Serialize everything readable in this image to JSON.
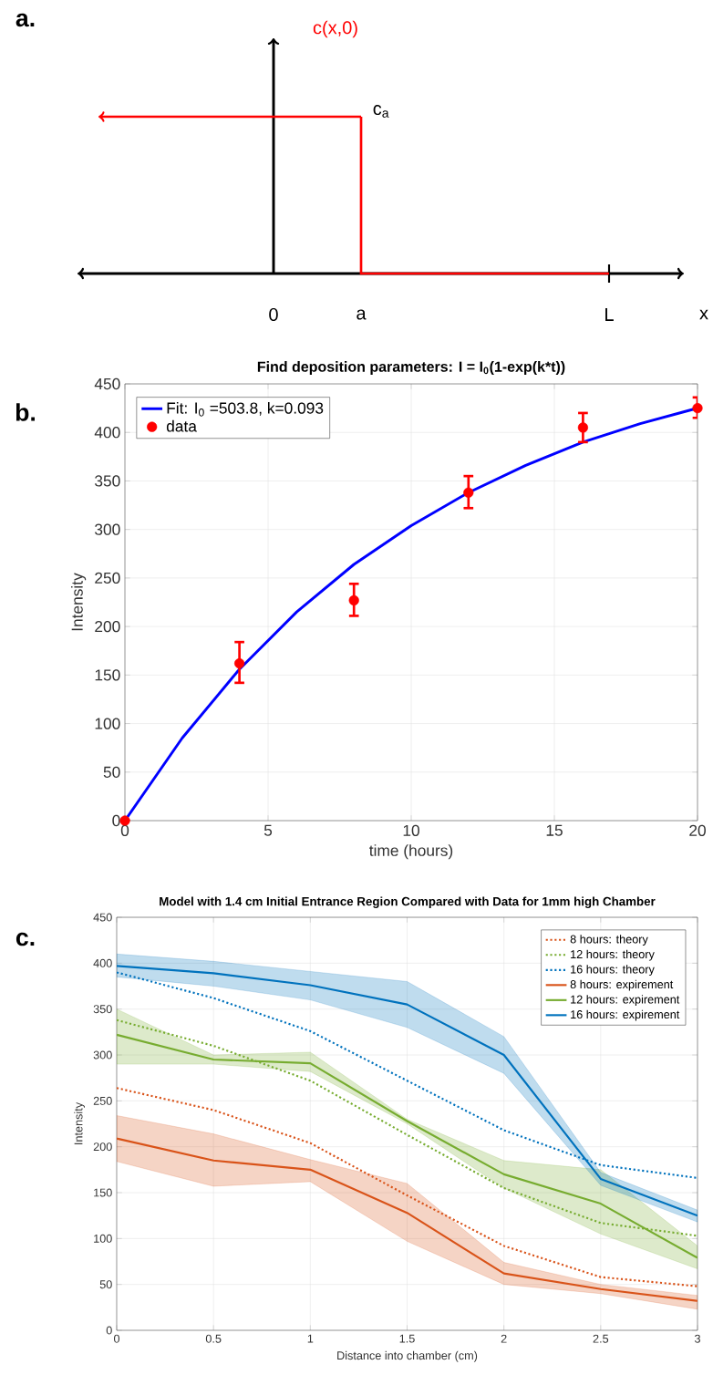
{
  "chart_data": [
    {
      "type": "other",
      "title": "c(x,0)",
      "annotations": [
        "a.",
        "c$_{a}$",
        "0",
        "a",
        "L",
        "x"
      ]
    },
    {
      "type": "scatter",
      "title": "Find deposition parameters: I = I$_{0}$(1-exp(k*t))",
      "xlabel": "time (hours)",
      "ylabel": "Intensity",
      "annotations": [
        "b."
      ],
      "xlim": [
        0,
        20
      ],
      "ylim": [
        0,
        450
      ],
      "xticks": [
        0,
        5,
        10,
        15,
        20
      ],
      "yticks": [
        0,
        50,
        100,
        150,
        200,
        250,
        300,
        350,
        400,
        450
      ],
      "grid": true,
      "legend": "top left",
      "series": [
        {
          "name": "Fit: I$_{0}$ =503.8, k=0.093",
          "type": "line",
          "color": "#0000ff",
          "marker": "none",
          "line_style": "solid",
          "x": [
            0,
            2,
            4,
            6,
            8,
            10,
            12,
            14,
            16,
            18,
            20
          ],
          "values": [
            0,
            85,
            156,
            215,
            264,
            304,
            338,
            366,
            390,
            409,
            425
          ]
        },
        {
          "name": "data",
          "type": "scatter",
          "color": "#ff0000",
          "marker": "circle",
          "x": [
            0,
            4,
            8,
            12,
            16,
            20
          ],
          "values": [
            0,
            162,
            227,
            338,
            405,
            425
          ],
          "errors": [
            null,
            [
              142,
              184
            ],
            [
              211,
              244
            ],
            [
              322,
              355
            ],
            [
              390,
              420
            ],
            [
              415,
              436
            ]
          ]
        }
      ]
    },
    {
      "type": "line",
      "title": "Model with 1.4 cm Initial Entrance Region Compared with Data for 1mm high Chamber",
      "xlabel": "Distance into chamber (cm)",
      "ylabel": "Intensity",
      "annotations": [
        "c."
      ],
      "x": [
        0,
        0.5,
        1,
        1.5,
        2,
        2.5,
        3
      ],
      "xlim": [
        0,
        3
      ],
      "ylim": [
        0,
        450
      ],
      "xticks": [
        0,
        0.5,
        1,
        1.5,
        2,
        2.5,
        3
      ],
      "yticks": [
        0,
        50,
        100,
        150,
        200,
        250,
        300,
        350,
        400,
        450
      ],
      "grid": true,
      "legend": "top right",
      "series": [
        {
          "name": "8 hours: theory",
          "color": "#d95319",
          "line_style": "dotted",
          "values": [
            264,
            240,
            204,
            147,
            92,
            58,
            48
          ]
        },
        {
          "name": "12 hours: theory",
          "color": "#77ac30",
          "line_style": "dotted",
          "values": [
            338,
            310,
            272,
            213,
            155,
            117,
            103
          ]
        },
        {
          "name": "16 hours: theory",
          "color": "#0072bd",
          "line_style": "dotted",
          "values": [
            390,
            362,
            326,
            272,
            218,
            180,
            166
          ]
        },
        {
          "name": "8 hours: expirement",
          "color": "#d95319",
          "line_style": "solid",
          "values": [
            209,
            185,
            175,
            128,
            62,
            45,
            32
          ],
          "lower": [
            184,
            157,
            162,
            97,
            50,
            40,
            23
          ],
          "upper": [
            234,
            214,
            186,
            160,
            74,
            50,
            38
          ]
        },
        {
          "name": "12 hours: expirement",
          "color": "#77ac30",
          "line_style": "solid",
          "values": [
            322,
            295,
            291,
            228,
            170,
            138,
            79
          ],
          "lower": [
            290,
            290,
            282,
            225,
            155,
            105,
            67
          ],
          "upper": [
            350,
            300,
            303,
            230,
            185,
            175,
            92
          ]
        },
        {
          "name": "16 hours: expirement",
          "color": "#0072bd",
          "line_style": "solid",
          "values": [
            397,
            389,
            376,
            355,
            300,
            165,
            125
          ],
          "lower": [
            385,
            375,
            360,
            330,
            280,
            158,
            118
          ],
          "upper": [
            410,
            402,
            391,
            380,
            320,
            172,
            131
          ]
        }
      ]
    }
  ]
}
